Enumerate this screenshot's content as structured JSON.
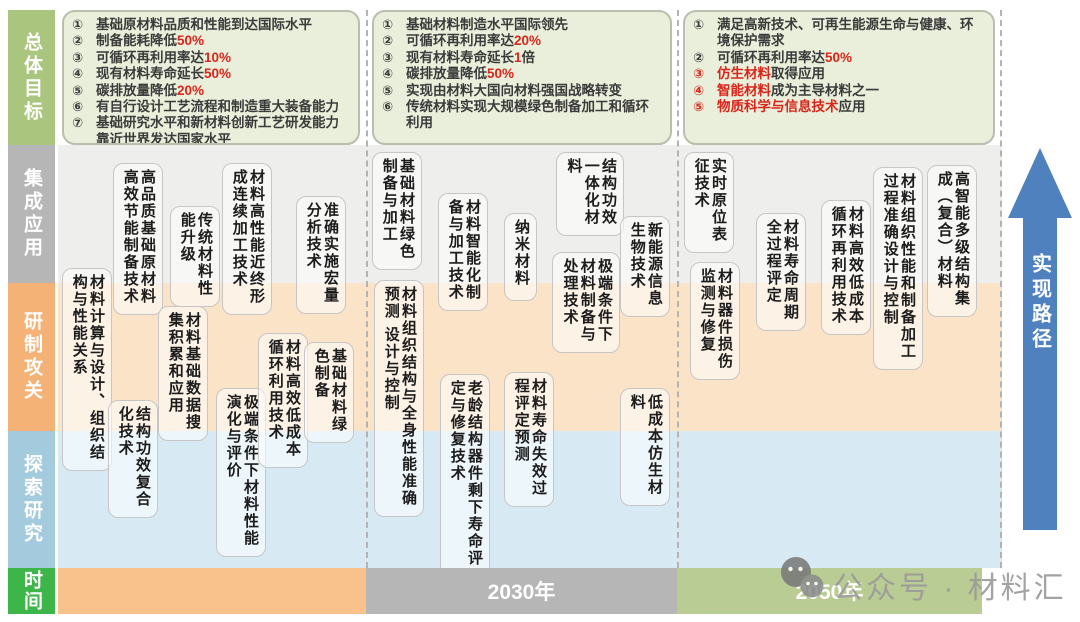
{
  "row_labels": [
    {
      "label": "总体目标"
    },
    {
      "label": "集成应用"
    },
    {
      "label": "研制攻关"
    },
    {
      "label": "探索研究"
    },
    {
      "label": "时间"
    }
  ],
  "goals": [
    {
      "items": [
        {
          "n": "①",
          "nr": false,
          "p": [
            [
              "基础原材料品质和性能到达国际水平",
              false
            ]
          ]
        },
        {
          "n": "②",
          "nr": false,
          "p": [
            [
              "制备能耗降低",
              false
            ],
            [
              "50%",
              true
            ]
          ]
        },
        {
          "n": "③",
          "nr": false,
          "p": [
            [
              "可循环再利用率达",
              false
            ],
            [
              "10%",
              true
            ]
          ]
        },
        {
          "n": "④",
          "nr": false,
          "p": [
            [
              "现有材料寿命延长",
              false
            ],
            [
              "50%",
              true
            ]
          ]
        },
        {
          "n": "⑤",
          "nr": false,
          "p": [
            [
              "碳排放量降低",
              false
            ],
            [
              "20%",
              true
            ]
          ]
        },
        {
          "n": "⑥",
          "nr": false,
          "p": [
            [
              "有自行设计工艺流程和制造重大装备能力",
              false
            ]
          ]
        },
        {
          "n": "⑦",
          "nr": false,
          "p": [
            [
              "基础研究水平和新材料创新工艺研发能力靠近世界发达国家水平",
              false
            ]
          ]
        }
      ]
    },
    {
      "items": [
        {
          "n": "①",
          "nr": false,
          "p": [
            [
              "基础材料制造水平国际领先",
              false
            ]
          ]
        },
        {
          "n": "②",
          "nr": false,
          "p": [
            [
              "可循环再利用率达",
              false
            ],
            [
              "20%",
              true
            ]
          ]
        },
        {
          "n": "③",
          "nr": false,
          "p": [
            [
              "现有材料寿命延长",
              false
            ],
            [
              "1",
              true
            ],
            [
              "倍",
              false
            ]
          ]
        },
        {
          "n": "④",
          "nr": false,
          "p": [
            [
              "碳排放量降低",
              false
            ],
            [
              "50%",
              true
            ]
          ]
        },
        {
          "n": "⑤",
          "nr": false,
          "p": [
            [
              "实现由材料大国向材料强国战略转变",
              false
            ]
          ]
        },
        {
          "n": "⑥",
          "nr": false,
          "p": [
            [
              "传统材料实现大规模绿色制备加工和循环利用",
              false
            ]
          ]
        }
      ]
    },
    {
      "items": [
        {
          "n": "①",
          "nr": false,
          "p": [
            [
              "满足高新技术、可再生能源生命与健康、环境保护需求",
              false
            ]
          ]
        },
        {
          "n": "②",
          "nr": false,
          "p": [
            [
              "可循环再利用率达",
              false
            ],
            [
              "50%",
              true
            ]
          ]
        },
        {
          "n": "③",
          "nr": true,
          "p": [
            [
              "仿生材料",
              true
            ],
            [
              "取得应用",
              false
            ]
          ]
        },
        {
          "n": "④",
          "nr": true,
          "p": [
            [
              "智能材料",
              true
            ],
            [
              "成为主导材料之一",
              false
            ]
          ]
        },
        {
          "n": "⑤",
          "nr": true,
          "p": [
            [
              "物质科学与信息技术",
              true
            ],
            [
              "应用",
              false
            ]
          ]
        }
      ]
    }
  ],
  "sections": [
    {
      "period": "",
      "boxes": [
        {
          "text": "高品质基础原材料高效节能制备技术"
        },
        {
          "text": "传统材料性能升级"
        },
        {
          "text": "材料高性能近终形成连续加工技术"
        },
        {
          "text": "准确实施宏量分析技术"
        },
        {
          "text": "材料计算与设计、组织结构与性能关系"
        },
        {
          "text": "材料基础数据搜集积累和应用"
        },
        {
          "text": "结构功效复合化技术"
        },
        {
          "text": "极端条件下材料性能演化与评价"
        },
        {
          "text": "材料高效低成本循环利用技术"
        },
        {
          "text": "基础材料绿色制备"
        }
      ]
    },
    {
      "period": "2030年",
      "boxes": [
        {
          "text": "基础材料绿色制备与加工"
        },
        {
          "text": "材料智能化制备与加工技术"
        },
        {
          "text": "纳米材料"
        },
        {
          "text": "结构功效一体化材料"
        },
        {
          "text": "新能源信息生物技术"
        },
        {
          "text": "极端条件下材料制备与处理技术"
        },
        {
          "text": "材料组织结构与全身性能准确预测 设计与控制"
        },
        {
          "text": "老龄结构器件剩下寿命评定与修复技术"
        },
        {
          "text": "材料寿命失效过程评定预测"
        },
        {
          "text": "低成本仿生材料"
        }
      ]
    },
    {
      "period": "2050年",
      "boxes": [
        {
          "text": "实时原位表征技术"
        },
        {
          "text": "材料器件损伤监测与修复"
        },
        {
          "text": "材料寿命周期全过程评定"
        },
        {
          "text": "材料高效低成本循环再利用技术"
        },
        {
          "text": "材料组织性能和制备加工过程准确设计与控制"
        },
        {
          "text": "高智能多级结构集成（复合）材料"
        }
      ]
    }
  ],
  "path_arrow_label": "实现路径",
  "watermark_text": "公众号 · 材料汇",
  "colors": {
    "label_green": "#a9c57e",
    "label_gray": "#b6b6b6",
    "label_orange": "#f5b277",
    "label_blue": "#a4cade",
    "label_time_green": "#3eb549",
    "band_gray": "#eeeeec",
    "band_orange": "#fbe3c7",
    "band_blue": "#d7eaf3",
    "timeline_orange": "#f9c28c",
    "timeline_gray": "#b6b6b6",
    "timeline_green": "#b9cc93",
    "goal_box_bg": "#e9efda",
    "arrow_blue": "#4e81bd",
    "highlight_red": "#d9261c"
  }
}
